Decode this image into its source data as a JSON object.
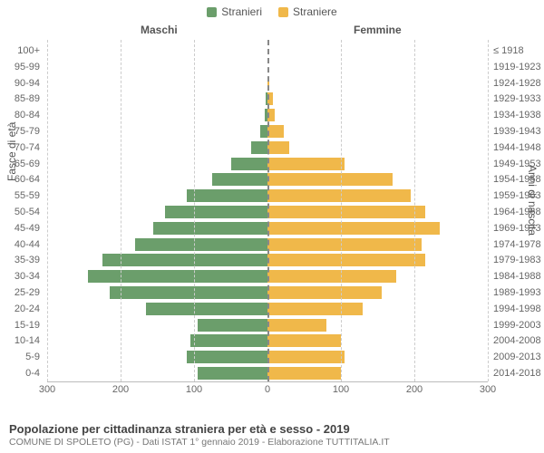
{
  "legend": {
    "male": {
      "label": "Stranieri",
      "color": "#6b9e6b"
    },
    "female": {
      "label": "Straniere",
      "color": "#f0b84a"
    }
  },
  "headers": {
    "male": "Maschi",
    "female": "Femmine"
  },
  "axis": {
    "left_title": "Fasce di età",
    "right_title": "Anni di nascita",
    "xmax": 300,
    "xticks": [
      300,
      200,
      100,
      0,
      100,
      200,
      300
    ]
  },
  "rows": [
    {
      "age": "100+",
      "birth": "≤ 1918",
      "m": 0,
      "f": 0
    },
    {
      "age": "95-99",
      "birth": "1919-1923",
      "m": 0,
      "f": 0
    },
    {
      "age": "90-94",
      "birth": "1924-1928",
      "m": 0,
      "f": 2
    },
    {
      "age": "85-89",
      "birth": "1929-1933",
      "m": 2,
      "f": 8
    },
    {
      "age": "80-84",
      "birth": "1934-1938",
      "m": 4,
      "f": 10
    },
    {
      "age": "75-79",
      "birth": "1939-1943",
      "m": 10,
      "f": 22
    },
    {
      "age": "70-74",
      "birth": "1944-1948",
      "m": 22,
      "f": 30
    },
    {
      "age": "65-69",
      "birth": "1949-1953",
      "m": 50,
      "f": 105
    },
    {
      "age": "60-64",
      "birth": "1954-1958",
      "m": 75,
      "f": 170
    },
    {
      "age": "55-59",
      "birth": "1959-1963",
      "m": 110,
      "f": 195
    },
    {
      "age": "50-54",
      "birth": "1964-1968",
      "m": 140,
      "f": 215
    },
    {
      "age": "45-49",
      "birth": "1969-1973",
      "m": 155,
      "f": 235
    },
    {
      "age": "40-44",
      "birth": "1974-1978",
      "m": 180,
      "f": 210
    },
    {
      "age": "35-39",
      "birth": "1979-1983",
      "m": 225,
      "f": 215
    },
    {
      "age": "30-34",
      "birth": "1984-1988",
      "m": 245,
      "f": 175
    },
    {
      "age": "25-29",
      "birth": "1989-1993",
      "m": 215,
      "f": 155
    },
    {
      "age": "20-24",
      "birth": "1994-1998",
      "m": 165,
      "f": 130
    },
    {
      "age": "15-19",
      "birth": "1999-2003",
      "m": 95,
      "f": 80
    },
    {
      "age": "10-14",
      "birth": "2004-2008",
      "m": 105,
      "f": 100
    },
    {
      "age": "5-9",
      "birth": "2009-2013",
      "m": 110,
      "f": 105
    },
    {
      "age": "0-4",
      "birth": "2014-2018",
      "m": 95,
      "f": 100
    }
  ],
  "colors": {
    "male_bar": "#6b9e6b",
    "female_bar": "#f0b84a",
    "grid": "#cccccc",
    "center": "#888888",
    "background": "#ffffff"
  },
  "footer": {
    "title": "Popolazione per cittadinanza straniera per età e sesso - 2019",
    "subtitle": "COMUNE DI SPOLETO (PG) - Dati ISTAT 1° gennaio 2019 - Elaborazione TUTTITALIA.IT"
  }
}
